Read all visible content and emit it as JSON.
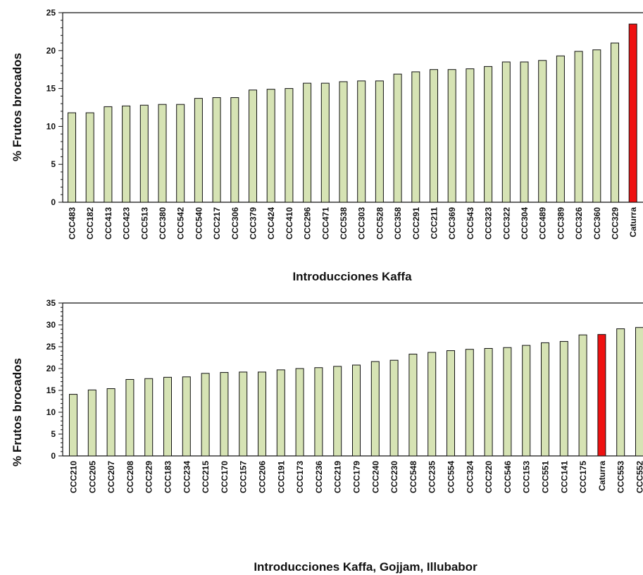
{
  "chart_data": [
    {
      "type": "bar",
      "xlabel": "Introducciones Kaffa",
      "ylabel": "% Frutos brocados",
      "ylim": [
        0,
        25
      ],
      "yticks": [
        0,
        5,
        10,
        15,
        20,
        25
      ],
      "grid": false,
      "bar_color": "#d6e3b4",
      "highlight_color": "#ee1111",
      "highlight": "Caturra",
      "categories": [
        "CCC483",
        "CCC182",
        "CCC413",
        "CCC423",
        "CCC513",
        "CCC380",
        "CCC542",
        "CCC540",
        "CCC217",
        "CCC306",
        "CCC379",
        "CCC424",
        "CCC410",
        "CCC296",
        "CCC471",
        "CCC538",
        "CCC303",
        "CCC528",
        "CCC358",
        "CCC291",
        "CCC211",
        "CCC369",
        "CCC543",
        "CCC323",
        "CCC322",
        "CCC304",
        "CCC489",
        "CCC389",
        "CCC326",
        "CCC360",
        "CCC329",
        "Caturra"
      ],
      "values": [
        11.8,
        11.8,
        12.6,
        12.7,
        12.8,
        12.9,
        12.9,
        13.7,
        13.8,
        13.8,
        14.8,
        14.9,
        15.0,
        15.7,
        15.7,
        15.9,
        16.0,
        16.0,
        16.9,
        17.2,
        17.5,
        17.5,
        17.6,
        17.9,
        18.5,
        18.5,
        18.7,
        19.3,
        19.9,
        20.1,
        21.0,
        23.5
      ]
    },
    {
      "type": "bar",
      "xlabel": "Introducciones Kaffa, Gojjam, Illubabor",
      "ylabel": "% Frutos brocados",
      "ylim": [
        0,
        35
      ],
      "yticks": [
        0,
        5,
        10,
        15,
        20,
        25,
        30,
        35
      ],
      "grid": false,
      "bar_color": "#d6e3b4",
      "highlight_color": "#ee1111",
      "highlight": "Caturra",
      "categories": [
        "CCC210",
        "CCC205",
        "CCC207",
        "CCC208",
        "CCC229",
        "CCC183",
        "CCC234",
        "CCC215",
        "CCC170",
        "CCC157",
        "CCC206",
        "CCC191",
        "CCC173",
        "CCC236",
        "CCC219",
        "CCC179",
        "CCC240",
        "CCC230",
        "CCC548",
        "CCC235",
        "CCC554",
        "CCC324",
        "CCC220",
        "CCC546",
        "CCC153",
        "CCC551",
        "CCC141",
        "CCC175",
        "Caturra",
        "CCC553",
        "CCC552"
      ],
      "values": [
        14.1,
        15.1,
        15.4,
        17.5,
        17.7,
        18.0,
        18.1,
        18.9,
        19.1,
        19.2,
        19.2,
        19.7,
        20.0,
        20.2,
        20.5,
        20.8,
        21.6,
        21.9,
        23.3,
        23.7,
        24.1,
        24.4,
        24.6,
        24.8,
        25.3,
        25.9,
        26.2,
        27.7,
        27.8,
        29.1,
        29.4
      ]
    }
  ]
}
